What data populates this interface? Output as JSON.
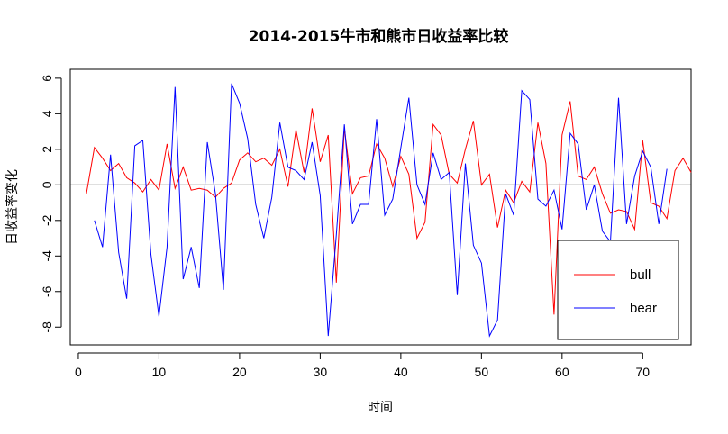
{
  "chart_data": {
    "type": "line",
    "title": "2014-2015牛市和熊市日收益率比较",
    "xlabel": "时间",
    "ylabel": "日收益率变化",
    "xlim": [
      -1,
      76
    ],
    "ylim": [
      -9,
      6.5
    ],
    "xticks": [
      0,
      10,
      20,
      30,
      40,
      50,
      60,
      70
    ],
    "yticks": [
      -8,
      -6,
      -4,
      -2,
      0,
      2,
      4,
      6
    ],
    "xtick_labels": [
      "0",
      "10",
      "20",
      "30",
      "40",
      "50",
      "60",
      "70"
    ],
    "ytick_labels": [
      "-8",
      "-6",
      "-4",
      "-2",
      "0",
      "2",
      "4",
      "6"
    ],
    "reference_line": 0,
    "legend": {
      "position": "bottom-right",
      "entries": [
        "bull",
        "bear"
      ]
    },
    "series": [
      {
        "name": "bull",
        "color": "#ff0000",
        "x": [
          1,
          2,
          3,
          4,
          5,
          6,
          7,
          8,
          9,
          10,
          11,
          12,
          13,
          14,
          15,
          16,
          17,
          18,
          19,
          20,
          21,
          22,
          23,
          24,
          25,
          26,
          27,
          28,
          29,
          30,
          31,
          32,
          33,
          34,
          35,
          36,
          37,
          38,
          39,
          40,
          41,
          42,
          43,
          44,
          45,
          46,
          47,
          48,
          49,
          50,
          51,
          52,
          53,
          54,
          55,
          56,
          57,
          58,
          59,
          60,
          61,
          62,
          63,
          64,
          65,
          66,
          67,
          68,
          69,
          70,
          71,
          72,
          73,
          74,
          75,
          76
        ],
        "y": [
          -0.5,
          2.1,
          1.5,
          0.8,
          1.2,
          0.4,
          0.1,
          -0.4,
          0.3,
          -0.3,
          2.3,
          -0.2,
          1.0,
          -0.3,
          -0.2,
          -0.3,
          -0.7,
          -0.2,
          0.1,
          1.4,
          1.8,
          1.3,
          1.5,
          1.1,
          2.0,
          -0.1,
          3.1,
          0.7,
          4.3,
          1.3,
          2.8,
          -5.5,
          3.2,
          -0.5,
          0.4,
          0.5,
          2.3,
          1.5,
          -0.1,
          1.6,
          0.6,
          -3.0,
          -2.1,
          3.4,
          2.8,
          0.6,
          0.1,
          2.0,
          3.6,
          0.0,
          0.6,
          -2.4,
          -0.3,
          -1.0,
          0.2,
          -0.4,
          3.5,
          1.2,
          -7.3,
          2.8,
          4.7,
          0.5,
          0.3,
          1.0,
          -0.5,
          -1.6,
          -1.4,
          -1.5,
          -2.5,
          2.5,
          -1.0,
          -1.2,
          -1.9,
          0.8,
          1.5,
          0.7
        ]
      },
      {
        "name": "bear",
        "color": "#0000ff",
        "x": [
          2,
          3,
          4,
          5,
          6,
          7,
          8,
          9,
          10,
          11,
          12,
          13,
          14,
          15,
          16,
          17,
          18,
          19,
          20,
          21,
          22,
          23,
          24,
          25,
          26,
          27,
          28,
          29,
          30,
          31,
          32,
          33,
          34,
          35,
          36,
          37,
          38,
          39,
          40,
          41,
          42,
          43,
          44,
          45,
          46,
          47,
          48,
          49,
          50,
          51,
          52,
          53,
          54,
          55,
          56,
          57,
          58,
          59,
          60,
          61,
          62,
          63,
          64,
          65,
          66,
          67,
          68,
          69,
          70,
          71,
          72,
          73
        ],
        "y": [
          -2.0,
          -3.5,
          1.7,
          -3.8,
          -6.4,
          2.2,
          2.5,
          -3.9,
          -7.4,
          -3.5,
          5.5,
          -5.3,
          -3.5,
          -5.8,
          2.4,
          -0.5,
          -5.9,
          5.7,
          4.6,
          2.6,
          -1.1,
          -3.0,
          -0.7,
          3.5,
          1.0,
          0.8,
          0.3,
          2.4,
          -0.6,
          -8.5,
          -2.8,
          3.4,
          -2.2,
          -1.1,
          -1.1,
          3.7,
          -1.7,
          -0.8,
          2.1,
          4.9,
          0.0,
          -1.1,
          1.8,
          0.3,
          0.7,
          -6.2,
          1.2,
          -3.4,
          -4.4,
          -8.5,
          -7.6,
          -0.5,
          -1.7,
          5.3,
          4.8,
          -0.8,
          -1.2,
          -0.3,
          -2.5,
          2.9,
          2.3,
          -1.4,
          0.0,
          -2.6,
          -3.2,
          4.9,
          -2.2,
          0.5,
          1.9,
          1.0,
          -2.2,
          0.9
        ]
      }
    ]
  }
}
